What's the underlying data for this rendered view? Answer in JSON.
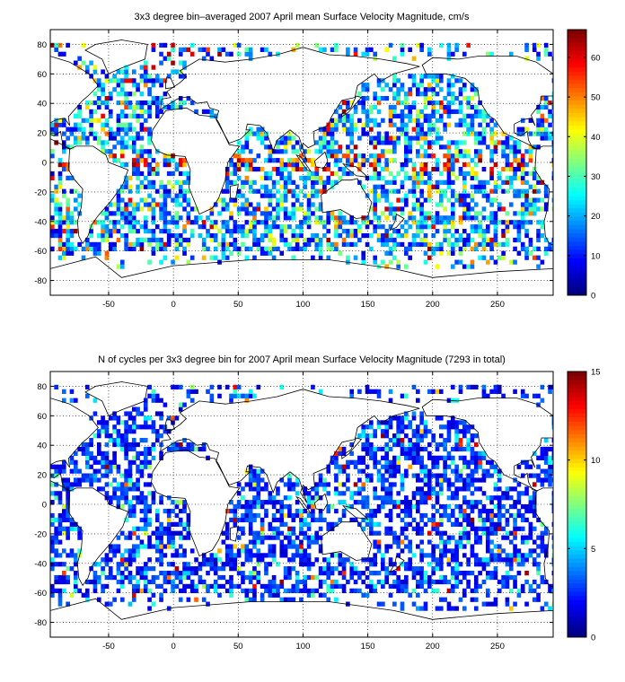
{
  "chart_data": [
    {
      "type": "heatmap",
      "title": "3x3 degree bin–averaged 2007 April mean Surface Velocity Magnitude, cm/s",
      "xlim": [
        -95,
        293
      ],
      "ylim": [
        -90,
        90
      ],
      "x_ticks": [
        -50,
        0,
        50,
        100,
        150,
        200,
        250
      ],
      "y_ticks": [
        -80,
        -60,
        -40,
        -20,
        0,
        20,
        40,
        60,
        80
      ],
      "colorbar": {
        "range": [
          0,
          67
        ],
        "ticks": [
          0,
          10,
          20,
          30,
          40,
          50,
          60
        ]
      },
      "bin_size_deg": 3,
      "grid": "dotted",
      "seed": 7
    },
    {
      "type": "heatmap",
      "title": "N of cycles per 3x3 degree bin for 2007 April mean Surface Velocity Magnitude (7293 in total)",
      "xlim": [
        -95,
        293
      ],
      "ylim": [
        -90,
        90
      ],
      "x_ticks": [
        -50,
        0,
        50,
        100,
        150,
        200,
        250
      ],
      "y_ticks": [
        -80,
        -60,
        -40,
        -20,
        0,
        20,
        40,
        60,
        80
      ],
      "colorbar": {
        "range": [
          0,
          15
        ],
        "ticks": [
          0,
          5,
          10,
          15
        ]
      },
      "bin_size_deg": 3,
      "grid": "dotted",
      "seed": 23
    }
  ],
  "colors": {
    "axis": "#000000",
    "land": "#ffffff",
    "grid": "#000000"
  }
}
